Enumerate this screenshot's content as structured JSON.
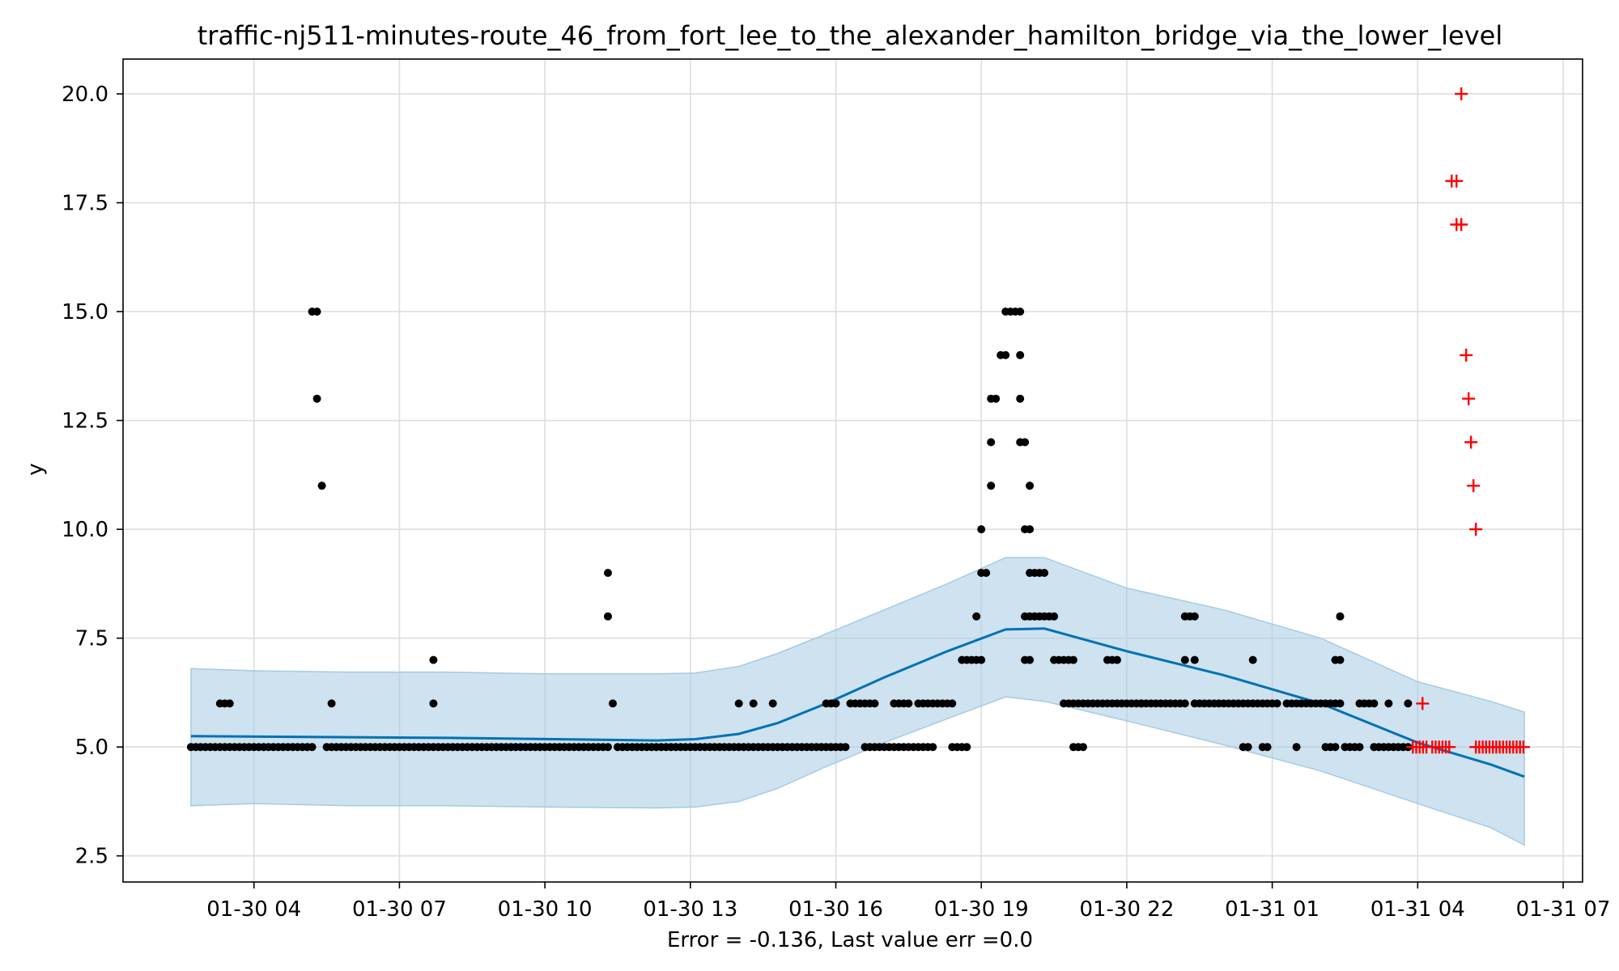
{
  "chart_data": {
    "type": "scatter",
    "title": "traffic-nj511-minutes-route_46_from_fort_lee_to_the_alexander_hamilton_bridge_via_the_lower_level",
    "xlabel": "Error = -0.136, Last value err =0.0",
    "ylabel": "y",
    "x_unit": "hours since 01-30 00:00",
    "xlim": [
      1.3,
      31.4
    ],
    "ylim": [
      1.9,
      20.8
    ],
    "grid": true,
    "x_ticks": [
      {
        "value": 4,
        "label": "01-30 04"
      },
      {
        "value": 7,
        "label": "01-30 07"
      },
      {
        "value": 10,
        "label": "01-30 10"
      },
      {
        "value": 13,
        "label": "01-30 13"
      },
      {
        "value": 16,
        "label": "01-30 16"
      },
      {
        "value": 19,
        "label": "01-30 19"
      },
      {
        "value": 22,
        "label": "01-30 22"
      },
      {
        "value": 25,
        "label": "01-31 01"
      },
      {
        "value": 28,
        "label": "01-31 04"
      },
      {
        "value": 31,
        "label": "01-31 07"
      }
    ],
    "y_ticks": [
      {
        "value": 2.5,
        "label": "2.5"
      },
      {
        "value": 5.0,
        "label": "5.0"
      },
      {
        "value": 7.5,
        "label": "7.5"
      },
      {
        "value": 10.0,
        "label": "10.0"
      },
      {
        "value": 12.5,
        "label": "12.5"
      },
      {
        "value": 15.0,
        "label": "15.0"
      },
      {
        "value": 17.5,
        "label": "17.5"
      },
      {
        "value": 20.0,
        "label": "20.0"
      }
    ],
    "colors": {
      "forecast_line": "#0072B2",
      "uncertainty_band": "#A6CBE3",
      "observed": "#000000",
      "holdout": "#FF0000",
      "grid": "#DDDDDD"
    },
    "series": [
      {
        "name": "forecast",
        "kind": "line",
        "x": [
          2.7,
          8.0,
          12.3,
          13.1,
          14.0,
          14.8,
          15.8,
          17.0,
          18.3,
          19.5,
          20.3,
          22.0,
          24.0,
          26.0,
          28.0,
          29.5,
          30.2
        ],
        "y": [
          5.25,
          5.21,
          5.15,
          5.18,
          5.3,
          5.55,
          6.0,
          6.6,
          7.2,
          7.7,
          7.72,
          7.2,
          6.65,
          6.0,
          5.1,
          4.6,
          4.32
        ]
      },
      {
        "name": "uncertainty",
        "kind": "band",
        "x": [
          2.7,
          4.0,
          6.0,
          8.0,
          10.0,
          12.3,
          13.1,
          14.0,
          14.8,
          15.8,
          17.0,
          18.3,
          19.5,
          20.3,
          22.0,
          24.0,
          26.0,
          28.0,
          29.5,
          30.2
        ],
        "lower": [
          3.65,
          3.7,
          3.65,
          3.65,
          3.62,
          3.6,
          3.62,
          3.75,
          4.05,
          4.55,
          5.1,
          5.65,
          6.15,
          6.05,
          5.6,
          5.05,
          4.45,
          3.7,
          3.15,
          2.75
        ],
        "upper": [
          6.8,
          6.75,
          6.72,
          6.72,
          6.68,
          6.68,
          6.7,
          6.85,
          7.15,
          7.6,
          8.15,
          8.75,
          9.35,
          9.35,
          8.65,
          8.15,
          7.5,
          6.5,
          6.05,
          5.8
        ]
      },
      {
        "name": "observed",
        "kind": "scatter",
        "runs": [
          {
            "x0": 2.7,
            "x1": 5.2,
            "y": 5
          },
          {
            "x0": 5.5,
            "x1": 11.3,
            "y": 5
          },
          {
            "x0": 11.5,
            "x1": 15.9,
            "y": 5
          },
          {
            "x0": 16.0,
            "x1": 16.2,
            "y": 5
          },
          {
            "x0": 16.6,
            "x1": 18.0,
            "y": 5
          },
          {
            "x0": 18.4,
            "x1": 18.7,
            "y": 5
          },
          {
            "x0": 20.9,
            "x1": 21.1,
            "y": 5
          },
          {
            "x0": 24.4,
            "x1": 24.5,
            "y": 5
          },
          {
            "x0": 24.8,
            "x1": 24.9,
            "y": 5
          },
          {
            "x0": 25.5,
            "x1": 25.5,
            "y": 5
          },
          {
            "x0": 26.1,
            "x1": 26.3,
            "y": 5
          },
          {
            "x0": 26.5,
            "x1": 26.8,
            "y": 5
          },
          {
            "x0": 27.1,
            "x1": 27.8,
            "y": 5
          },
          {
            "x0": 3.3,
            "x1": 3.5,
            "y": 6
          },
          {
            "x0": 15.8,
            "x1": 16.0,
            "y": 6
          },
          {
            "x0": 16.3,
            "x1": 16.8,
            "y": 6
          },
          {
            "x0": 17.2,
            "x1": 17.5,
            "y": 6
          },
          {
            "x0": 17.7,
            "x1": 18.4,
            "y": 6
          },
          {
            "x0": 20.7,
            "x1": 22.3,
            "y": 6
          },
          {
            "x0": 22.3,
            "x1": 23.2,
            "y": 6
          },
          {
            "x0": 23.4,
            "x1": 25.1,
            "y": 6
          },
          {
            "x0": 25.3,
            "x1": 26.4,
            "y": 6
          },
          {
            "x0": 26.8,
            "x1": 27.1,
            "y": 6
          },
          {
            "x0": 18.6,
            "x1": 19.0,
            "y": 7
          },
          {
            "x0": 19.9,
            "x1": 20.0,
            "y": 7
          },
          {
            "x0": 20.5,
            "x1": 20.9,
            "y": 7
          },
          {
            "x0": 21.6,
            "x1": 21.8,
            "y": 7
          },
          {
            "x0": 26.3,
            "x1": 26.4,
            "y": 7
          },
          {
            "x0": 19.9,
            "x1": 20.2,
            "y": 8
          },
          {
            "x0": 20.3,
            "x1": 20.5,
            "y": 8
          },
          {
            "x0": 23.2,
            "x1": 23.4,
            "y": 8
          },
          {
            "x0": 19.0,
            "x1": 19.1,
            "y": 9
          },
          {
            "x0": 20.1,
            "x1": 20.3,
            "y": 9
          },
          {
            "x0": 19.7,
            "x1": 19.8,
            "y": 15
          }
        ],
        "points": [
          {
            "x": 5.6,
            "y": 6
          },
          {
            "x": 7.7,
            "y": 6
          },
          {
            "x": 11.4,
            "y": 6
          },
          {
            "x": 14.0,
            "y": 6
          },
          {
            "x": 14.3,
            "y": 6
          },
          {
            "x": 14.7,
            "y": 6
          },
          {
            "x": 27.4,
            "y": 6
          },
          {
            "x": 27.8,
            "y": 6
          },
          {
            "x": 7.7,
            "y": 7
          },
          {
            "x": 23.2,
            "y": 7
          },
          {
            "x": 23.4,
            "y": 7
          },
          {
            "x": 24.6,
            "y": 7
          },
          {
            "x": 11.3,
            "y": 8
          },
          {
            "x": 18.9,
            "y": 8
          },
          {
            "x": 26.4,
            "y": 8
          },
          {
            "x": 11.3,
            "y": 9
          },
          {
            "x": 20.0,
            "y": 9
          },
          {
            "x": 5.4,
            "y": 11
          },
          {
            "x": 19.2,
            "y": 11
          },
          {
            "x": 20.0,
            "y": 11
          },
          {
            "x": 19.0,
            "y": 10
          },
          {
            "x": 19.9,
            "y": 10
          },
          {
            "x": 20.0,
            "y": 10
          },
          {
            "x": 19.2,
            "y": 12
          },
          {
            "x": 19.8,
            "y": 12
          },
          {
            "x": 19.9,
            "y": 12
          },
          {
            "x": 5.3,
            "y": 13
          },
          {
            "x": 19.2,
            "y": 13
          },
          {
            "x": 19.3,
            "y": 13
          },
          {
            "x": 19.8,
            "y": 13
          },
          {
            "x": 19.4,
            "y": 14
          },
          {
            "x": 19.5,
            "y": 14
          },
          {
            "x": 19.8,
            "y": 14
          },
          {
            "x": 5.2,
            "y": 15
          },
          {
            "x": 5.3,
            "y": 15
          },
          {
            "x": 19.5,
            "y": 15
          },
          {
            "x": 19.6,
            "y": 15
          }
        ]
      },
      {
        "name": "holdout",
        "kind": "scatter",
        "runs": [
          {
            "x0": 27.9,
            "x1": 28.2,
            "y": 5
          },
          {
            "x0": 28.3,
            "x1": 28.7,
            "y": 5
          },
          {
            "x0": 29.2,
            "x1": 30.2,
            "y": 5
          }
        ],
        "points": [
          {
            "x": 28.1,
            "y": 6
          },
          {
            "x": 28.7,
            "y": 18
          },
          {
            "x": 28.8,
            "y": 18
          },
          {
            "x": 28.8,
            "y": 17
          },
          {
            "x": 28.9,
            "y": 17
          },
          {
            "x": 28.9,
            "y": 20
          },
          {
            "x": 29.0,
            "y": 14
          },
          {
            "x": 29.05,
            "y": 13
          },
          {
            "x": 29.1,
            "y": 12
          },
          {
            "x": 29.15,
            "y": 11
          },
          {
            "x": 29.2,
            "y": 10
          }
        ]
      }
    ]
  }
}
